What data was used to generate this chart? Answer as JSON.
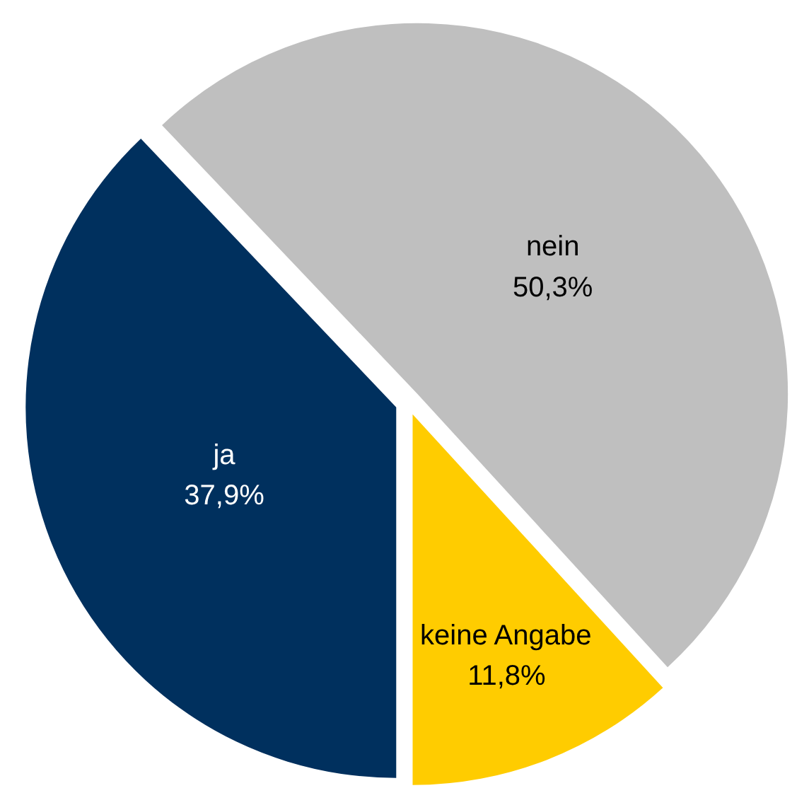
{
  "chart_data": {
    "type": "pie",
    "categories": [
      "ja",
      "nein",
      "keine Angabe"
    ],
    "values": [
      37.9,
      50.3,
      11.8
    ],
    "colors": [
      "#00305e",
      "#bfbfbf",
      "#ffcc00"
    ],
    "value_labels": [
      "37,9%",
      "50,3%",
      "11,8%"
    ]
  }
}
